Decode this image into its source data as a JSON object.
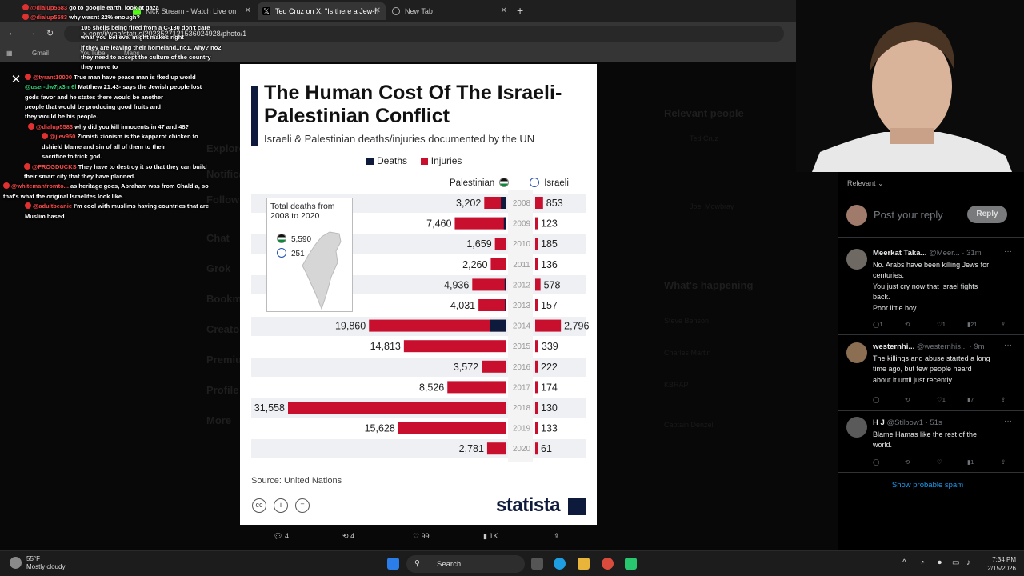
{
  "browser": {
    "tabs": [
      {
        "label": "Kick Stream - Watch Live on"
      },
      {
        "label": "Ted Cruz on X: \"Is there a Jew-h"
      },
      {
        "label": "New Tab"
      }
    ],
    "new_tab_symbol": "+",
    "url": "x.com/i/web/status/2023527121536024928/photo/1",
    "bookmarks": [
      "Gmail",
      "YouTube",
      "Maps"
    ]
  },
  "chat": [
    {
      "user": "@dialup5583",
      "text": "go to google earth. look at gaza"
    },
    {
      "user": "@dialup5583",
      "text": "why wasnt 22% enough?"
    },
    {
      "user": "",
      "text": "105 shells being fired from a C-130 don't care\nwhat you believe. might makes right"
    },
    {
      "user": "",
      "text": "if they are leaving their homeland..no1. why? no2\nthey need to accept the culture of the country\nthey move to"
    },
    {
      "user": "@tyrant10000",
      "text": "True man have peace man is fked up world"
    },
    {
      "user": "@user-dw7jx3nr6l",
      "green": true,
      "text": "Matthew 21:43- says the Jewish people lost\ngods favor and he states there would be another\npeople that would be producing good fruits and\nthey would be his people."
    },
    {
      "user": "@dialup5583",
      "text": "why did you kill innocents in 47 and 48?"
    },
    {
      "user": "@jlev950",
      "text": "Zionist/ zionism is the kapparot chicken to\ndshield blame and sin of all of them to their\nsacrifice to trick god."
    },
    {
      "user": "@FROGDUCKS",
      "text": "They have to destroy it so that they can build\ntheir smart city that they have planned."
    },
    {
      "user": "@whitemanfromto...",
      "text": "as heritage goes, Abraham was from Chaldia, so\nthat's what the original Israelites look like."
    },
    {
      "user": "@adultbeanie",
      "text": "I'm cool with muslims having countries that are\nMuslim based"
    }
  ],
  "modal": {
    "close_symbol": "✕"
  },
  "chart_data": {
    "type": "bar",
    "title": "The Human Cost Of The Israeli-Palestinian Conflict",
    "subtitle": "Israeli & Palestinian deaths/injuries documented by the UN",
    "legend": [
      "Deaths",
      "Injuries"
    ],
    "colors": {
      "deaths": "#0e1a3b",
      "injuries": "#c8102e"
    },
    "column_headers": {
      "left": "Palestinian",
      "right": "Israeli"
    },
    "categories": [
      "2008",
      "2009",
      "2010",
      "2011",
      "2012",
      "2013",
      "2014",
      "2015",
      "2016",
      "2017",
      "2018",
      "2019",
      "2020"
    ],
    "series": [
      {
        "name": "Palestinian",
        "values": [
          3202,
          7460,
          1659,
          2260,
          4936,
          4031,
          19860,
          14813,
          3572,
          8526,
          31558,
          15628,
          2781
        ]
      },
      {
        "name": "Israeli",
        "values": [
          853,
          123,
          185,
          136,
          578,
          157,
          2796,
          339,
          222,
          174,
          130,
          133,
          61
        ]
      }
    ],
    "palestinian_deaths_share": [
      0.25,
      0.05,
      0.05,
      0.05,
      0.05,
      0.05,
      0.12,
      0,
      0,
      0,
      0,
      0,
      0
    ],
    "inset": {
      "title": "Total deaths from 2008 to 2020",
      "palestinian": "5,590",
      "israeli": "251"
    },
    "source": "Source: United Nations",
    "brand": "statista"
  },
  "actions": {
    "replies": "4",
    "reposts": "4",
    "likes": "99",
    "views": "1K"
  },
  "ghost_page": {
    "relevant_people_heading": "Relevant people",
    "whats_happening_heading": "What's happening",
    "nav": [
      "Explore",
      "Notifications",
      "Follow",
      "Chat",
      "Grok",
      "Bookmarks",
      "Creator Studio",
      "Premium",
      "Profile",
      "More"
    ],
    "people": [
      "Ted Cruz",
      "Joel Mowbray"
    ],
    "trends": [
      "Steve Benson",
      "Charles Martin",
      "KBRAP",
      "Captain Denzel"
    ]
  },
  "replies": {
    "sort_label": "Relevant",
    "post_placeholder": "Post your reply",
    "reply_button": "Reply",
    "comments": [
      {
        "name": "Meerkat Taka...",
        "handle": "@Meer... · 31m",
        "text": "No. Arabs have been killing Jews for\ncenturies.\nYou just cry now that Israel fights\nback.\nPoor little boy.",
        "replies": "1",
        "reposts": "",
        "likes": "1",
        "views": "21"
      },
      {
        "name": "westernhi...",
        "handle": "@westernhis... · 9m",
        "text": "The killings and abuse started a long\ntime ago, but few people heard\nabout it until just recently.",
        "replies": "",
        "reposts": "",
        "likes": "1",
        "views": "7"
      },
      {
        "name": "H J",
        "handle": "@Stilbow1 · 51s",
        "text": "Blame Hamas like the rest of the\nworld.",
        "replies": "",
        "reposts": "",
        "likes": "",
        "views": "1"
      }
    ],
    "show_spam": "Show probable spam"
  },
  "taskbar": {
    "weather_temp": "55°F",
    "weather_desc": "Mostly cloudy",
    "search_label": "Search",
    "time": "7:34 PM",
    "date": "2/15/2026"
  }
}
